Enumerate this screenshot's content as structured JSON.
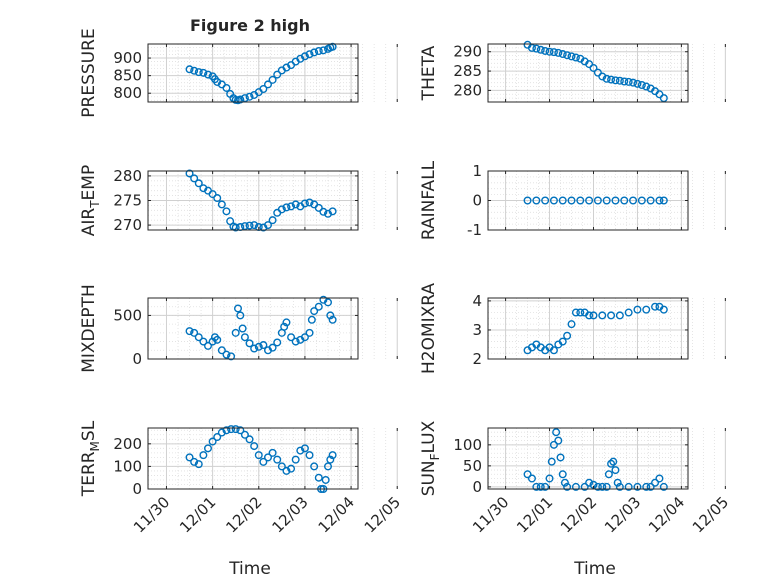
{
  "figure": {
    "title": "Figure 2 high",
    "xlabel": "Time",
    "x_ticks": [
      "11/30",
      "12/01",
      "12/02",
      "12/03",
      "12/04",
      "12/05"
    ]
  },
  "colors": {
    "marker": "#0072BD",
    "axis": "#262626",
    "grid": "#dfdfdf",
    "background": "#ffffff"
  },
  "chart_data": [
    {
      "type": "scatter",
      "id": "pressure",
      "ylabel": "PRESSURE",
      "ylim": [
        775,
        940
      ],
      "y_ticks": [
        {
          "v": 800,
          "label": "800"
        },
        {
          "v": 850,
          "label": "850"
        },
        {
          "v": 900,
          "label": "900"
        }
      ],
      "points": [
        [
          0.5,
          868
        ],
        [
          0.6,
          864
        ],
        [
          0.7,
          860
        ],
        [
          0.8,
          858
        ],
        [
          0.9,
          853
        ],
        [
          1.0,
          848
        ],
        [
          1.05,
          840
        ],
        [
          1.1,
          832
        ],
        [
          1.2,
          825
        ],
        [
          1.3,
          815
        ],
        [
          1.38,
          798
        ],
        [
          1.45,
          786
        ],
        [
          1.5,
          781
        ],
        [
          1.55,
          780
        ],
        [
          1.6,
          782
        ],
        [
          1.7,
          786
        ],
        [
          1.8,
          790
        ],
        [
          1.9,
          795
        ],
        [
          2.0,
          803
        ],
        [
          2.1,
          812
        ],
        [
          2.2,
          825
        ],
        [
          2.3,
          838
        ],
        [
          2.4,
          853
        ],
        [
          2.5,
          865
        ],
        [
          2.6,
          873
        ],
        [
          2.7,
          880
        ],
        [
          2.8,
          890
        ],
        [
          2.9,
          898
        ],
        [
          3.0,
          905
        ],
        [
          3.1,
          911
        ],
        [
          3.2,
          916
        ],
        [
          3.3,
          920
        ],
        [
          3.4,
          922
        ],
        [
          3.5,
          926
        ],
        [
          3.55,
          930
        ],
        [
          3.6,
          932
        ]
      ]
    },
    {
      "type": "scatter",
      "id": "theta",
      "ylabel": "THETA",
      "ylim": [
        277,
        292
      ],
      "y_ticks": [
        {
          "v": 280,
          "label": "280"
        },
        {
          "v": 285,
          "label": "285"
        },
        {
          "v": 290,
          "label": "290"
        }
      ],
      "points": [
        [
          0.5,
          291.8
        ],
        [
          0.6,
          291
        ],
        [
          0.7,
          290.8
        ],
        [
          0.8,
          290.5
        ],
        [
          0.9,
          290.2
        ],
        [
          1.0,
          290
        ],
        [
          1.1,
          289.9
        ],
        [
          1.2,
          289.7
        ],
        [
          1.3,
          289.4
        ],
        [
          1.4,
          289.1
        ],
        [
          1.5,
          288.8
        ],
        [
          1.6,
          288.5
        ],
        [
          1.7,
          288.2
        ],
        [
          1.8,
          287.5
        ],
        [
          1.9,
          286.8
        ],
        [
          2.0,
          285.8
        ],
        [
          2.1,
          284.6
        ],
        [
          2.2,
          283.6
        ],
        [
          2.3,
          283
        ],
        [
          2.4,
          282.8
        ],
        [
          2.5,
          282.6
        ],
        [
          2.6,
          282.5
        ],
        [
          2.7,
          282.3
        ],
        [
          2.8,
          282.2
        ],
        [
          2.9,
          282
        ],
        [
          3.0,
          281.7
        ],
        [
          3.1,
          281.4
        ],
        [
          3.2,
          281
        ],
        [
          3.3,
          280.5
        ],
        [
          3.4,
          279.8
        ],
        [
          3.5,
          279
        ],
        [
          3.6,
          278
        ]
      ]
    },
    {
      "type": "scatter",
      "id": "air_temp",
      "ylabel": "AIR_TEMP",
      "ylim": [
        269,
        281
      ],
      "y_ticks": [
        {
          "v": 270,
          "label": "270"
        },
        {
          "v": 275,
          "label": "275"
        },
        {
          "v": 280,
          "label": "280"
        }
      ],
      "points": [
        [
          0.5,
          280.5
        ],
        [
          0.6,
          279.5
        ],
        [
          0.7,
          278.5
        ],
        [
          0.8,
          277.5
        ],
        [
          0.9,
          277
        ],
        [
          1.0,
          276.3
        ],
        [
          1.1,
          275.5
        ],
        [
          1.2,
          274.2
        ],
        [
          1.3,
          272.8
        ],
        [
          1.38,
          270.8
        ],
        [
          1.45,
          269.7
        ],
        [
          1.5,
          269.5
        ],
        [
          1.6,
          269.6
        ],
        [
          1.7,
          269.8
        ],
        [
          1.8,
          269.9
        ],
        [
          1.9,
          270
        ],
        [
          2.0,
          269.6
        ],
        [
          2.1,
          269.5
        ],
        [
          2.2,
          270
        ],
        [
          2.3,
          271
        ],
        [
          2.4,
          272.5
        ],
        [
          2.5,
          273.2
        ],
        [
          2.6,
          273.6
        ],
        [
          2.7,
          273.8
        ],
        [
          2.8,
          274.2
        ],
        [
          2.9,
          273.8
        ],
        [
          3.0,
          274.4
        ],
        [
          3.1,
          274.6
        ],
        [
          3.2,
          274.2
        ],
        [
          3.3,
          273.5
        ],
        [
          3.4,
          272.7
        ],
        [
          3.5,
          272.3
        ],
        [
          3.6,
          272.8
        ]
      ]
    },
    {
      "type": "scatter",
      "id": "rainfall",
      "ylabel": "RAINFALL",
      "ylim": [
        -1,
        1
      ],
      "y_ticks": [
        {
          "v": -1,
          "label": "-1"
        },
        {
          "v": 0,
          "label": "0"
        },
        {
          "v": 1,
          "label": "1"
        }
      ],
      "points": [
        [
          0.5,
          0
        ],
        [
          0.7,
          0
        ],
        [
          0.9,
          0
        ],
        [
          1.1,
          0
        ],
        [
          1.3,
          0
        ],
        [
          1.5,
          0
        ],
        [
          1.7,
          0
        ],
        [
          1.9,
          0
        ],
        [
          2.1,
          0
        ],
        [
          2.3,
          0
        ],
        [
          2.5,
          0
        ],
        [
          2.7,
          0
        ],
        [
          2.9,
          0
        ],
        [
          3.1,
          0
        ],
        [
          3.3,
          0
        ],
        [
          3.5,
          0
        ],
        [
          3.6,
          0
        ]
      ]
    },
    {
      "type": "scatter",
      "id": "mixdepth",
      "ylabel": "MIXDEPTH",
      "ylim": [
        0,
        700
      ],
      "y_ticks": [
        {
          "v": 0,
          "label": "0"
        },
        {
          "v": 500,
          "label": "500"
        }
      ],
      "points": [
        [
          0.5,
          320
        ],
        [
          0.6,
          300
        ],
        [
          0.7,
          250
        ],
        [
          0.8,
          200
        ],
        [
          0.9,
          150
        ],
        [
          1.0,
          200
        ],
        [
          1.05,
          250
        ],
        [
          1.1,
          220
        ],
        [
          1.2,
          100
        ],
        [
          1.3,
          50
        ],
        [
          1.4,
          30
        ],
        [
          1.5,
          300
        ],
        [
          1.55,
          580
        ],
        [
          1.6,
          500
        ],
        [
          1.65,
          350
        ],
        [
          1.7,
          250
        ],
        [
          1.8,
          180
        ],
        [
          1.9,
          120
        ],
        [
          2.0,
          140
        ],
        [
          2.1,
          160
        ],
        [
          2.2,
          100
        ],
        [
          2.3,
          130
        ],
        [
          2.4,
          190
        ],
        [
          2.5,
          300
        ],
        [
          2.55,
          370
        ],
        [
          2.6,
          420
        ],
        [
          2.7,
          250
        ],
        [
          2.8,
          200
        ],
        [
          2.9,
          220
        ],
        [
          3.0,
          250
        ],
        [
          3.1,
          300
        ],
        [
          3.15,
          450
        ],
        [
          3.2,
          550
        ],
        [
          3.3,
          600
        ],
        [
          3.4,
          680
        ],
        [
          3.5,
          650
        ],
        [
          3.55,
          500
        ],
        [
          3.6,
          450
        ]
      ]
    },
    {
      "type": "scatter",
      "id": "h2omixra",
      "ylabel": "H2OMIXRA",
      "ylim": [
        2,
        4.1
      ],
      "y_ticks": [
        {
          "v": 2,
          "label": "2"
        },
        {
          "v": 3,
          "label": "3"
        },
        {
          "v": 4,
          "label": "4"
        }
      ],
      "points": [
        [
          0.5,
          2.3
        ],
        [
          0.6,
          2.4
        ],
        [
          0.7,
          2.5
        ],
        [
          0.8,
          2.4
        ],
        [
          0.9,
          2.3
        ],
        [
          1.0,
          2.4
        ],
        [
          1.1,
          2.3
        ],
        [
          1.2,
          2.5
        ],
        [
          1.3,
          2.6
        ],
        [
          1.4,
          2.8
        ],
        [
          1.5,
          3.2
        ],
        [
          1.6,
          3.6
        ],
        [
          1.7,
          3.6
        ],
        [
          1.8,
          3.6
        ],
        [
          1.9,
          3.5
        ],
        [
          2.0,
          3.5
        ],
        [
          2.2,
          3.5
        ],
        [
          2.4,
          3.5
        ],
        [
          2.6,
          3.5
        ],
        [
          2.8,
          3.6
        ],
        [
          3.0,
          3.7
        ],
        [
          3.2,
          3.7
        ],
        [
          3.4,
          3.8
        ],
        [
          3.5,
          3.8
        ],
        [
          3.6,
          3.7
        ]
      ]
    },
    {
      "type": "scatter",
      "id": "terr_msl",
      "ylabel": "TERR_MSL",
      "ylim": [
        0,
        270
      ],
      "y_ticks": [
        {
          "v": 0,
          "label": "0"
        },
        {
          "v": 100,
          "label": "100"
        },
        {
          "v": 200,
          "label": "200"
        }
      ],
      "points": [
        [
          0.5,
          140
        ],
        [
          0.6,
          120
        ],
        [
          0.7,
          110
        ],
        [
          0.8,
          150
        ],
        [
          0.9,
          180
        ],
        [
          1.0,
          210
        ],
        [
          1.1,
          230
        ],
        [
          1.2,
          250
        ],
        [
          1.3,
          260
        ],
        [
          1.4,
          265
        ],
        [
          1.5,
          265
        ],
        [
          1.6,
          260
        ],
        [
          1.7,
          240
        ],
        [
          1.8,
          220
        ],
        [
          1.9,
          190
        ],
        [
          2.0,
          150
        ],
        [
          2.1,
          120
        ],
        [
          2.2,
          140
        ],
        [
          2.3,
          160
        ],
        [
          2.4,
          130
        ],
        [
          2.5,
          100
        ],
        [
          2.6,
          80
        ],
        [
          2.7,
          90
        ],
        [
          2.8,
          130
        ],
        [
          2.9,
          170
        ],
        [
          3.0,
          180
        ],
        [
          3.1,
          150
        ],
        [
          3.2,
          100
        ],
        [
          3.3,
          50
        ],
        [
          3.35,
          0
        ],
        [
          3.4,
          0
        ],
        [
          3.45,
          40
        ],
        [
          3.5,
          100
        ],
        [
          3.55,
          130
        ],
        [
          3.6,
          150
        ]
      ]
    },
    {
      "type": "scatter",
      "id": "sun_flux",
      "ylabel": "SUN_FLUX",
      "ylim": [
        -5,
        140
      ],
      "y_ticks": [
        {
          "v": 0,
          "label": "0"
        },
        {
          "v": 50,
          "label": "50"
        },
        {
          "v": 100,
          "label": "100"
        }
      ],
      "points": [
        [
          0.5,
          30
        ],
        [
          0.6,
          20
        ],
        [
          0.7,
          0
        ],
        [
          0.8,
          0
        ],
        [
          0.9,
          0
        ],
        [
          1.0,
          20
        ],
        [
          1.05,
          60
        ],
        [
          1.1,
          100
        ],
        [
          1.15,
          130
        ],
        [
          1.2,
          110
        ],
        [
          1.25,
          70
        ],
        [
          1.3,
          30
        ],
        [
          1.35,
          10
        ],
        [
          1.4,
          0
        ],
        [
          1.6,
          0
        ],
        [
          1.8,
          0
        ],
        [
          1.9,
          10
        ],
        [
          2.0,
          5
        ],
        [
          2.1,
          0
        ],
        [
          2.2,
          0
        ],
        [
          2.3,
          0
        ],
        [
          2.35,
          30
        ],
        [
          2.4,
          55
        ],
        [
          2.45,
          60
        ],
        [
          2.5,
          40
        ],
        [
          2.55,
          10
        ],
        [
          2.6,
          0
        ],
        [
          2.8,
          0
        ],
        [
          3.0,
          0
        ],
        [
          3.2,
          0
        ],
        [
          3.3,
          0
        ],
        [
          3.4,
          10
        ],
        [
          3.5,
          20
        ],
        [
          3.6,
          0
        ]
      ]
    }
  ]
}
